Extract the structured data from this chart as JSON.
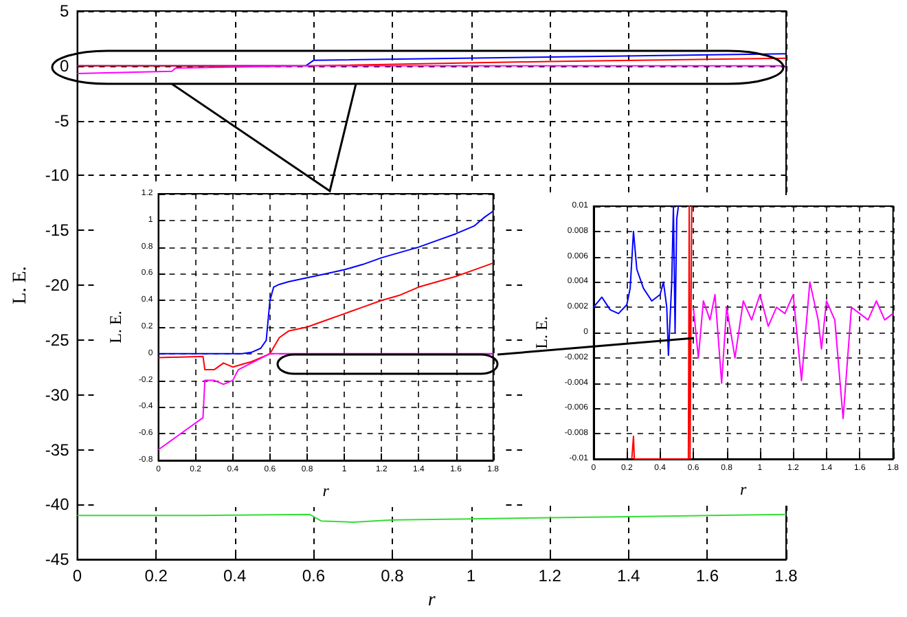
{
  "chart_data": [
    {
      "type": "line",
      "xlabel": "r",
      "ylabel": "L. E.",
      "xlim": [
        0,
        1.8
      ],
      "ylim": [
        -45,
        5
      ],
      "xticks": [
        0,
        0.2,
        0.4,
        0.6,
        0.8,
        1,
        1.2,
        1.4,
        1.6,
        1.8
      ],
      "yticks": [
        -45,
        -40,
        -35,
        -30,
        -25,
        -20,
        -15,
        -10,
        -5,
        0,
        5
      ],
      "grid": true,
      "series": [
        {
          "color": "#0000ff",
          "x": [
            0,
            0.58,
            0.6,
            1.2,
            1.8
          ],
          "values": [
            0,
            0,
            0.5,
            0.8,
            1.1
          ]
        },
        {
          "color": "#ff0000",
          "x": [
            0,
            0.6,
            1.2,
            1.8
          ],
          "values": [
            0,
            0,
            0.4,
            0.7
          ]
        },
        {
          "color": "#ff00ff",
          "x": [
            0,
            0.24,
            0.25,
            0.6,
            1.8
          ],
          "values": [
            -0.7,
            -0.5,
            -0.2,
            0,
            0
          ]
        },
        {
          "color": "#33dd33",
          "x": [
            0,
            0.3,
            0.59,
            0.62,
            0.7,
            0.8,
            1.0,
            1.2,
            1.4,
            1.6,
            1.8
          ],
          "values": [
            -41,
            -41,
            -40.9,
            -41.5,
            -41.6,
            -41.4,
            -41.3,
            -41.2,
            -41.1,
            -41,
            -40.9
          ]
        }
      ]
    },
    {
      "type": "line",
      "xlabel": "r",
      "ylabel": "L. E.",
      "xlim": [
        0,
        1.8
      ],
      "ylim": [
        -0.8,
        1.2
      ],
      "xticks": [
        0,
        0.2,
        0.4,
        0.6,
        0.8,
        1,
        1.2,
        1.4,
        1.6,
        1.8
      ],
      "yticks": [
        -0.8,
        -0.6,
        -0.4,
        -0.2,
        0,
        0.2,
        0.4,
        0.6,
        0.8,
        1,
        1.2
      ],
      "grid": true,
      "series": [
        {
          "color": "#0000ff",
          "x": [
            0,
            0.45,
            0.5,
            0.55,
            0.58,
            0.6,
            0.61,
            0.62,
            0.65,
            0.7,
            0.8,
            0.9,
            1.0,
            1.1,
            1.2,
            1.3,
            1.4,
            1.5,
            1.6,
            1.7,
            1.75,
            1.8
          ],
          "values": [
            0,
            0,
            0.01,
            0.04,
            0.1,
            0.4,
            0.45,
            0.5,
            0.52,
            0.54,
            0.57,
            0.6,
            0.63,
            0.67,
            0.72,
            0.76,
            0.8,
            0.85,
            0.9,
            0.96,
            1.02,
            1.07
          ]
        },
        {
          "color": "#ff0000",
          "x": [
            0,
            0.24,
            0.25,
            0.3,
            0.35,
            0.4,
            0.45,
            0.5,
            0.55,
            0.6,
            0.65,
            0.7,
            0.8,
            0.9,
            1.0,
            1.1,
            1.2,
            1.3,
            1.4,
            1.5,
            1.6,
            1.7,
            1.8
          ],
          "values": [
            -0.03,
            -0.02,
            -0.12,
            -0.12,
            -0.07,
            -0.1,
            -0.08,
            -0.06,
            -0.03,
            0,
            0.12,
            0.17,
            0.2,
            0.25,
            0.3,
            0.35,
            0.4,
            0.44,
            0.5,
            0.54,
            0.58,
            0.63,
            0.68
          ]
        },
        {
          "color": "#ff00ff",
          "x": [
            0,
            0.24,
            0.25,
            0.3,
            0.35,
            0.4,
            0.43,
            0.5,
            0.6,
            1.8
          ],
          "values": [
            -0.72,
            -0.48,
            -0.2,
            -0.2,
            -0.23,
            -0.2,
            -0.12,
            -0.07,
            0,
            0
          ]
        }
      ]
    },
    {
      "type": "line",
      "xlabel": "r",
      "ylabel": "L. E.",
      "xlim": [
        0,
        1.8
      ],
      "ylim": [
        -0.01,
        0.01
      ],
      "xticks": [
        0,
        0.2,
        0.4,
        0.6,
        0.8,
        1,
        1.2,
        1.4,
        1.6,
        1.8
      ],
      "yticks": [
        -0.01,
        -0.008,
        -0.006,
        -0.004,
        -0.002,
        0,
        0.002,
        0.004,
        0.006,
        0.008,
        0.01
      ],
      "grid": true,
      "series": [
        {
          "color": "#0000ff",
          "x": [
            0,
            0.05,
            0.1,
            0.15,
            0.2,
            0.22,
            0.24,
            0.26,
            0.3,
            0.35,
            0.4,
            0.42,
            0.44,
            0.45,
            0.47,
            0.48,
            0.49,
            0.5,
            0.51
          ],
          "values": [
            0.002,
            0.0028,
            0.0018,
            0.0015,
            0.0022,
            0.0035,
            0.008,
            0.005,
            0.0035,
            0.0025,
            0.003,
            0.004,
            0.002,
            -0.0018,
            0.004,
            0.01,
            0,
            0.009,
            0.01
          ]
        },
        {
          "color": "#ff0000",
          "x": [
            0.23,
            0.24,
            0.245,
            0.57,
            0.575,
            0.58,
            0.59
          ],
          "values": [
            -0.01,
            -0.0082,
            -0.01,
            -0.01,
            0.01,
            -0.01,
            0.01
          ]
        },
        {
          "color": "#ff00ff",
          "x": [
            0.6,
            0.63,
            0.66,
            0.7,
            0.73,
            0.77,
            0.8,
            0.85,
            0.9,
            0.95,
            1.0,
            1.05,
            1.1,
            1.15,
            1.2,
            1.25,
            1.3,
            1.35,
            1.37,
            1.4,
            1.45,
            1.5,
            1.55,
            1.6,
            1.65,
            1.7,
            1.75,
            1.8
          ],
          "values": [
            0.002,
            -0.002,
            0.0025,
            0.001,
            0.003,
            -0.004,
            0.002,
            -0.002,
            0.0025,
            0.001,
            0.003,
            0.0005,
            0.002,
            0.0015,
            0.003,
            -0.0038,
            0.004,
            0.001,
            -0.0013,
            0.0025,
            0.001,
            -0.0068,
            0.002,
            0.0015,
            0.001,
            0.0025,
            0.001,
            0.0015
          ]
        }
      ]
    }
  ]
}
